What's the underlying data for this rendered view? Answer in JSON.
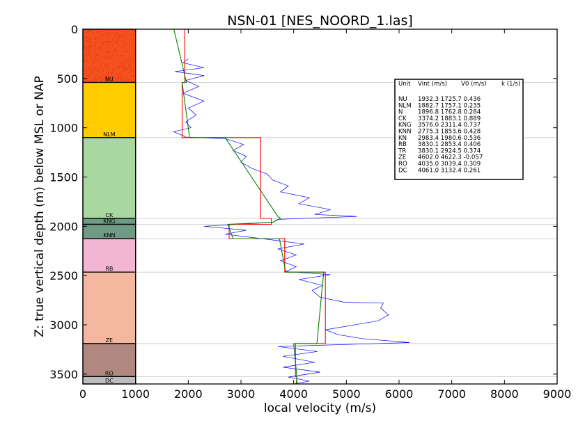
{
  "chart_data": {
    "type": "line",
    "title": "NSN-01 [NES_NOORD_1.las]",
    "xlabel": "local velocity (m/s)",
    "ylabel": "Z: true vertical depth (m) below MSL or NAP",
    "xlim": [
      0,
      9000
    ],
    "ylim": [
      3600,
      0
    ],
    "y_inverted": true,
    "x_ticks": [
      "0",
      "1000",
      "2000",
      "3000",
      "4000",
      "5000",
      "6000",
      "7000",
      "8000",
      "9000"
    ],
    "y_ticks": [
      "0",
      "500",
      "1000",
      "1500",
      "2000",
      "2500",
      "3000",
      "3500"
    ],
    "grid": "horizontal lines at unit boundaries",
    "units": [
      {
        "name": "NU",
        "top": 0,
        "bottom": 540,
        "color": "#f4511e",
        "vint": 1932.3,
        "v0": 1725.7,
        "k": 0.436
      },
      {
        "name": "NLM",
        "top": 540,
        "bottom": 1100,
        "color": "#ffcc00",
        "vint": 1882.7,
        "v0": 1757.1,
        "k": 0.235
      },
      {
        "name": "CK",
        "top": 1100,
        "bottom": 1920,
        "color": "#a8d8a0",
        "vint": 3374.2,
        "v0": 1883.1,
        "k": 0.889
      },
      {
        "name": "KNG",
        "top": 1920,
        "bottom": 1980,
        "color": "#6f9b85",
        "vint": 3576.0,
        "v0": 2311.4,
        "k": 0.737
      },
      {
        "name": "KNN",
        "top": 1980,
        "bottom": 2125,
        "color": "#6f9b85",
        "vint": 2775.3,
        "v0": 1853.6,
        "k": 0.428
      },
      {
        "name": "RB",
        "top": 2125,
        "bottom": 2465,
        "color": "#f2b6d2",
        "vint": 3830.1,
        "v0": 2853.4,
        "k": 0.406
      },
      {
        "name": "ZE",
        "top": 2465,
        "bottom": 3190,
        "color": "#f4b8a0",
        "vint": 4602.0,
        "v0": 4622.3,
        "k": -0.057
      },
      {
        "name": "RO",
        "top": 3190,
        "bottom": 3525,
        "color": "#b08880",
        "vint": 4035.0,
        "v0": 3039.4,
        "k": 0.309
      },
      {
        "name": "DC",
        "top": 3525,
        "bottom": 3600,
        "color": "#bdbdbd",
        "vint": 4061.0,
        "v0": 3132.4,
        "k": 0.261
      }
    ],
    "legend": {
      "placement": "right",
      "header": [
        "Unit",
        "Vint (m/s)",
        "V0 (m/s)",
        "k (1/s)"
      ],
      "rows": [
        {
          "name": "NU",
          "text": "1932.3  1725.7  0.436"
        },
        {
          "name": "NLM",
          "text": "1882.7  1757.1  0.235"
        },
        {
          "name": "N",
          "text": "1896.8  1762.8  0.284"
        },
        {
          "name": "CK",
          "text": "3374.2  1883.1  0.889"
        },
        {
          "name": "KNG",
          "text": "3576.0  2311.4  0.737"
        },
        {
          "name": "KNN",
          "text": "2775.3  1853.6  0.428"
        },
        {
          "name": "KN",
          "text": "2983.4  1980.6  0.536"
        },
        {
          "name": "RB",
          "text": "3830.1  2853.4  0.406"
        },
        {
          "name": "TR",
          "text": "3830.1  2924.5  0.374"
        },
        {
          "name": "ZE",
          "text": "4602.0  4622.3  -0.057"
        },
        {
          "name": "RO",
          "text": "4035.0  3039.4  0.309"
        },
        {
          "name": "DC",
          "text": "4061.0  3132.4  0.261"
        }
      ]
    },
    "series": [
      {
        "color": "#0000ff",
        "points": [
          [
            2000,
            300
          ],
          [
            1900,
            340
          ],
          [
            2300,
            390
          ],
          [
            1750,
            430
          ],
          [
            2300,
            470
          ],
          [
            1950,
            520
          ],
          [
            2200,
            580
          ],
          [
            1900,
            650
          ],
          [
            2300,
            730
          ],
          [
            2000,
            800
          ],
          [
            2150,
            870
          ],
          [
            1950,
            940
          ],
          [
            2050,
            1000
          ],
          [
            1720,
            1040
          ],
          [
            1900,
            1080
          ],
          [
            1950,
            1095
          ],
          [
            2700,
            1110
          ],
          [
            3050,
            1170
          ],
          [
            2850,
            1230
          ],
          [
            3100,
            1290
          ],
          [
            3000,
            1350
          ],
          [
            3200,
            1410
          ],
          [
            3500,
            1470
          ],
          [
            3600,
            1530
          ],
          [
            3900,
            1590
          ],
          [
            3750,
            1650
          ],
          [
            4300,
            1710
          ],
          [
            4100,
            1770
          ],
          [
            4700,
            1830
          ],
          [
            4400,
            1880
          ],
          [
            5200,
            1900
          ],
          [
            3700,
            1930
          ],
          [
            3600,
            1960
          ],
          [
            2300,
            2000
          ],
          [
            3100,
            2040
          ],
          [
            2700,
            2080
          ],
          [
            3150,
            2110
          ],
          [
            3550,
            2135
          ],
          [
            4200,
            2180
          ],
          [
            3700,
            2230
          ],
          [
            4050,
            2290
          ],
          [
            3750,
            2350
          ],
          [
            4050,
            2410
          ],
          [
            3850,
            2460
          ],
          [
            4700,
            2490
          ],
          [
            4100,
            2540
          ],
          [
            4550,
            2600
          ],
          [
            4350,
            2650
          ],
          [
            4500,
            2720
          ],
          [
            4950,
            2770
          ],
          [
            5700,
            2780
          ],
          [
            5650,
            2830
          ],
          [
            5800,
            2900
          ],
          [
            5600,
            2960
          ],
          [
            4600,
            3050
          ],
          [
            4850,
            3100
          ],
          [
            5300,
            3140
          ],
          [
            6200,
            3180
          ],
          [
            3700,
            3220
          ],
          [
            4450,
            3270
          ],
          [
            3800,
            3320
          ],
          [
            4400,
            3380
          ],
          [
            3800,
            3430
          ],
          [
            4500,
            3480
          ],
          [
            3900,
            3530
          ],
          [
            4300,
            3570
          ],
          [
            4000,
            3600
          ]
        ]
      },
      {
        "color": "#ff0000",
        "points": [
          [
            1932,
            0
          ],
          [
            1932,
            540
          ],
          [
            1883,
            540
          ],
          [
            1883,
            1100
          ],
          [
            3374,
            1100
          ],
          [
            3374,
            1920
          ],
          [
            3576,
            1920
          ],
          [
            3576,
            1980
          ],
          [
            2775,
            1980
          ],
          [
            2775,
            2125
          ],
          [
            3830,
            2125
          ],
          [
            3830,
            2465
          ],
          [
            4602,
            2465
          ],
          [
            4602,
            3190
          ],
          [
            4035,
            3190
          ],
          [
            4035,
            3525
          ],
          [
            4061,
            3525
          ],
          [
            4061,
            3600
          ]
        ]
      },
      {
        "color": "#008000",
        "points": [
          [
            1726,
            0
          ],
          [
            1965,
            540
          ],
          [
            1883,
            540
          ],
          [
            2025,
            1100
          ],
          [
            2700,
            1100
          ],
          [
            3700,
            1900
          ],
          [
            3750,
            1920
          ],
          [
            3600,
            1960
          ],
          [
            2750,
            1980
          ],
          [
            2850,
            2125
          ],
          [
            3730,
            2125
          ],
          [
            3850,
            2465
          ],
          [
            4570,
            2465
          ],
          [
            4440,
            3190
          ],
          [
            4000,
            3190
          ],
          [
            4060,
            3525
          ],
          [
            4050,
            3600
          ]
        ]
      }
    ]
  }
}
